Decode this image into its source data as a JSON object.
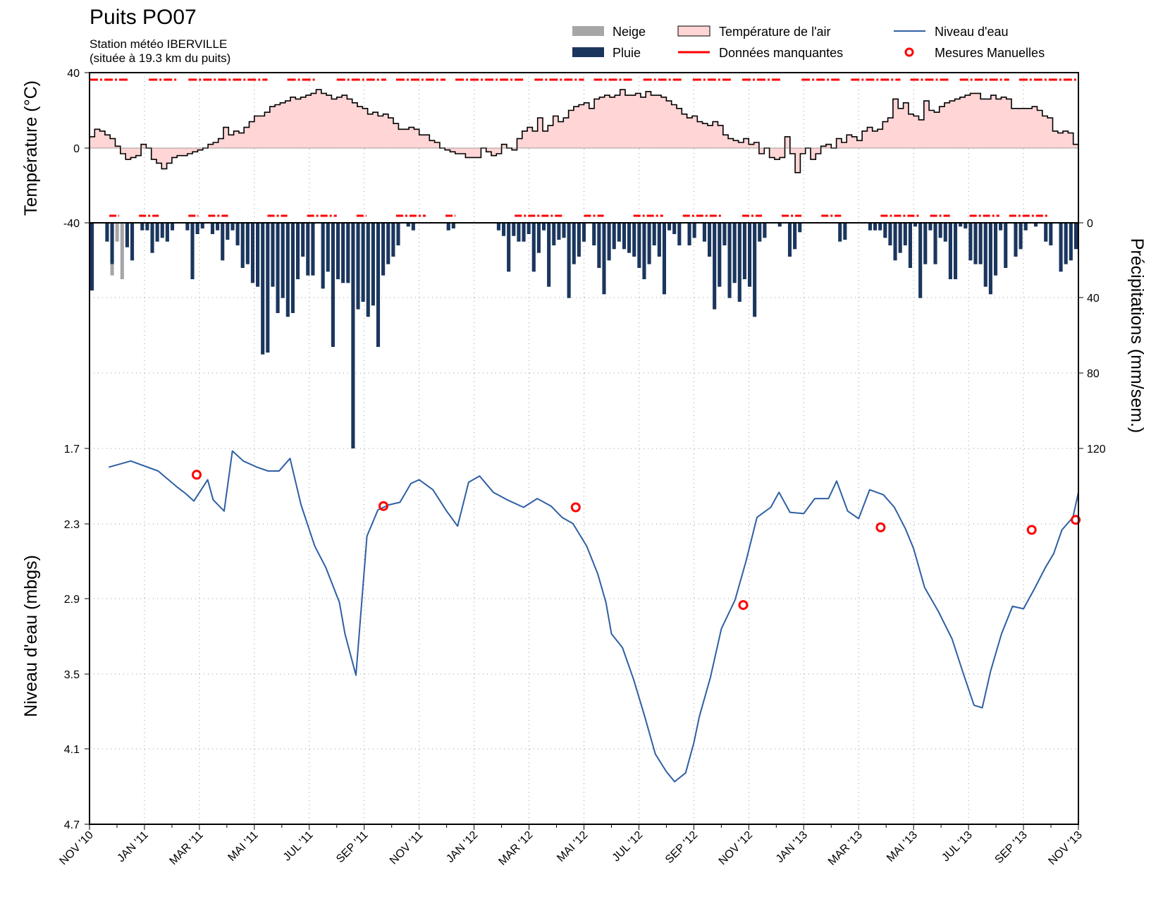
{
  "chart_data": {
    "type": "line",
    "title": "Puits PO07",
    "subtitle_1": "Station météo IBERVILLE",
    "subtitle_2": "(située à 19.3 km du puits)",
    "legend": {
      "snow": "Neige",
      "rain": "Pluie",
      "air_temp": "Température de l'air",
      "missing": "Données manquantes",
      "water_level": "Niveau d'eau",
      "manual": "Mesures Manuelles"
    },
    "colors": {
      "snow": "#a6a6a6",
      "rain": "#1b365d",
      "air_temp_fill": "#ffd5d5",
      "missing": "#ff0000",
      "water_level": "#2e5fa3",
      "manual": "#ff0000"
    },
    "x_ticks": [
      "NOV '10",
      "JAN '11",
      "MAR '11",
      "MAI '11",
      "JUL '11",
      "SEP '11",
      "NOV '11",
      "JAN '12",
      "MAR '12",
      "MAI '12",
      "JUL '12",
      "SEP '12",
      "NOV '12",
      "JAN '13",
      "MAR '13",
      "MAI '13",
      "JUL '13",
      "SEP '13",
      "NOV '13"
    ],
    "temperature": {
      "ylabel": "Température (°C)",
      "ylim": [
        -40,
        40
      ],
      "yticks": [
        "40",
        "0",
        "-40"
      ],
      "weekly_values": [
        6,
        10,
        9,
        7,
        5,
        1,
        -3,
        -6,
        -5,
        -4,
        2,
        0,
        -6,
        -8,
        -11,
        -8,
        -5,
        -4,
        -4,
        -3,
        -2,
        -1,
        0,
        2,
        3,
        5,
        11,
        7,
        9,
        8,
        11,
        14,
        17,
        17,
        19,
        22,
        23,
        24,
        25,
        27,
        26,
        27,
        28,
        29,
        31,
        29,
        28,
        26,
        27,
        28,
        26,
        24,
        22,
        21,
        18,
        19,
        17,
        18,
        16,
        13,
        10,
        10,
        11,
        10,
        7,
        7,
        4,
        3,
        0,
        -1,
        -2,
        -3,
        -3,
        -5,
        -5,
        -5,
        0,
        -2,
        -4,
        -3,
        2,
        0,
        -1,
        5,
        9,
        11,
        9,
        16,
        9,
        12,
        17,
        14,
        16,
        20,
        22,
        23,
        24,
        21,
        26,
        27,
        28,
        27,
        28,
        31,
        28,
        28,
        29,
        27,
        30,
        28,
        28,
        27,
        25,
        23,
        21,
        18,
        16,
        17,
        14,
        13,
        12,
        14,
        12,
        7,
        5,
        4,
        3,
        5,
        2,
        3,
        -3,
        0,
        -5,
        -6,
        -5,
        6,
        -3,
        -13,
        -3,
        0,
        -6,
        -3,
        1,
        2,
        0,
        5,
        3,
        7,
        6,
        4,
        9,
        11,
        9,
        10,
        14,
        16,
        26,
        21,
        24,
        18,
        17,
        15,
        25,
        20,
        19,
        22,
        24,
        25,
        26,
        27,
        28,
        29,
        29,
        26,
        26,
        28,
        26,
        27,
        26,
        21,
        21,
        21,
        21,
        22,
        20,
        17,
        16,
        9,
        8,
        9,
        8,
        2
      ],
      "missing_top_segments": [
        [
          0.0,
          0.04
        ],
        [
          0.06,
          0.09
        ],
        [
          0.1,
          0.18
        ],
        [
          0.2,
          0.23
        ],
        [
          0.25,
          0.3
        ],
        [
          0.31,
          0.36
        ],
        [
          0.37,
          0.44
        ],
        [
          0.45,
          0.5
        ],
        [
          0.51,
          0.55
        ],
        [
          0.56,
          0.6
        ],
        [
          0.61,
          0.65
        ],
        [
          0.66,
          0.7
        ],
        [
          0.72,
          0.76
        ],
        [
          0.77,
          0.82
        ],
        [
          0.83,
          0.87
        ],
        [
          0.88,
          0.93
        ],
        [
          0.94,
          1.0
        ]
      ],
      "missing_bottom_segments": [
        [
          0.02,
          0.03
        ],
        [
          0.05,
          0.07
        ],
        [
          0.1,
          0.11
        ],
        [
          0.12,
          0.14
        ],
        [
          0.18,
          0.2
        ],
        [
          0.22,
          0.25
        ],
        [
          0.27,
          0.28
        ],
        [
          0.31,
          0.34
        ],
        [
          0.36,
          0.37
        ],
        [
          0.43,
          0.48
        ],
        [
          0.5,
          0.52
        ],
        [
          0.55,
          0.58
        ],
        [
          0.6,
          0.64
        ],
        [
          0.66,
          0.68
        ],
        [
          0.7,
          0.72
        ],
        [
          0.74,
          0.76
        ],
        [
          0.8,
          0.84
        ],
        [
          0.85,
          0.87
        ],
        [
          0.89,
          0.92
        ],
        [
          0.93,
          0.97
        ]
      ]
    },
    "precipitation": {
      "ylabel": "Précipitations (mm/sem.)",
      "ylim": [
        0,
        120
      ],
      "yticks": [
        "0",
        "40",
        "80",
        "120"
      ],
      "rain": [
        36,
        0,
        0,
        10,
        22,
        0,
        0,
        13,
        20,
        0,
        4,
        4,
        16,
        10,
        8,
        10,
        4,
        0,
        0,
        4,
        30,
        6,
        3,
        0,
        6,
        4,
        20,
        9,
        4,
        12,
        24,
        22,
        32,
        34,
        70,
        69,
        34,
        48,
        40,
        50,
        48,
        30,
        18,
        28,
        28,
        0,
        35,
        26,
        66,
        30,
        32,
        32,
        120,
        46,
        42,
        50,
        44,
        66,
        28,
        22,
        18,
        12,
        0,
        2,
        4,
        0,
        0,
        0,
        0,
        0,
        0,
        4,
        3,
        0,
        0,
        0,
        0,
        0,
        0,
        0,
        0,
        4,
        7,
        26,
        7,
        10,
        10,
        6,
        26,
        16,
        4,
        34,
        12,
        9,
        8,
        40,
        22,
        18,
        10,
        0,
        12,
        24,
        38,
        20,
        14,
        10,
        14,
        16,
        18,
        24,
        30,
        22,
        12,
        18,
        38,
        4,
        6,
        12,
        0,
        12,
        8,
        0,
        10,
        18,
        46,
        34,
        12,
        40,
        32,
        42,
        30,
        34,
        50,
        10,
        8,
        0,
        0,
        2,
        0,
        18,
        14,
        5,
        0,
        0,
        0,
        0,
        0,
        0,
        0,
        10,
        9,
        0,
        0,
        0,
        0,
        4,
        4,
        4,
        8,
        12,
        20,
        16,
        12,
        24,
        2,
        40,
        22,
        4,
        22,
        8,
        10,
        30,
        30,
        2,
        3,
        20,
        22,
        22,
        34,
        38,
        28,
        4,
        24,
        0,
        18,
        14,
        4,
        0,
        2,
        0,
        10,
        12,
        0,
        26,
        22,
        20,
        14
      ],
      "snow": [
        0,
        0,
        0,
        0,
        6,
        10,
        30,
        0,
        0,
        0,
        0,
        0,
        0,
        0,
        0,
        0,
        0,
        0,
        0,
        0,
        0,
        0,
        0,
        0,
        0,
        0,
        0,
        0,
        0,
        0,
        0,
        0,
        0,
        0,
        0,
        0,
        0,
        0,
        0,
        0,
        0,
        0,
        0,
        0,
        0,
        0,
        0,
        0,
        0,
        0,
        0,
        0,
        0,
        0,
        0,
        0,
        0,
        0,
        0,
        0,
        0,
        0,
        0,
        0,
        0,
        0,
        0,
        0,
        0,
        0,
        0,
        0,
        0,
        0,
        0,
        0,
        0,
        0,
        0,
        0,
        0,
        0,
        0,
        0,
        0,
        0,
        0,
        0,
        0,
        0,
        0,
        0,
        0,
        0,
        0,
        0,
        0,
        0,
        0,
        0,
        0,
        0,
        0,
        0,
        0,
        0,
        0,
        0,
        0,
        0,
        0,
        0,
        0,
        0,
        0,
        0,
        0,
        0,
        0,
        0,
        0,
        0,
        0,
        0,
        0,
        0,
        0,
        0,
        0,
        0,
        0,
        0,
        0,
        0,
        0,
        0,
        0,
        0,
        0,
        0,
        0,
        0,
        0,
        0,
        0,
        0,
        0,
        0,
        0,
        0,
        0,
        0,
        0,
        0,
        0,
        0,
        0,
        0,
        0,
        0,
        0,
        0,
        0,
        0,
        0,
        0,
        0,
        0,
        0,
        0,
        0,
        0,
        0,
        0,
        0,
        0,
        0,
        0,
        0,
        0,
        0,
        0,
        0,
        0,
        0,
        0,
        0,
        0,
        0,
        0,
        0,
        0,
        0,
        0,
        0,
        0
      ]
    },
    "water_level": {
      "ylabel": "Niveau d'eau (mbgs)",
      "ylim": [
        4.7,
        1.7
      ],
      "yticks": [
        "1.7",
        "2.3",
        "2.9",
        "3.5",
        "4.1",
        "4.7"
      ],
      "x_months": [
        0.7,
        1.5,
        2.5,
        3.2,
        3.5,
        3.8,
        4.3,
        4.5,
        4.9,
        5.2,
        5.6,
        6.1,
        6.5,
        6.9,
        7.3,
        7.7,
        8.2,
        8.6,
        9.1,
        9.3,
        9.7,
        10.1,
        10.5,
        10.9,
        11.3,
        11.7,
        12.0,
        12.5,
        13.0,
        13.4,
        13.8,
        14.2,
        14.7,
        15.2,
        15.8,
        16.3,
        16.8,
        17.2,
        17.6,
        18.1,
        18.5,
        18.8,
        19.0,
        19.4,
        19.8,
        20.2,
        20.6,
        21.0,
        21.3,
        21.7,
        22.0,
        22.2,
        22.6,
        23.0,
        23.5,
        23.9,
        24.3,
        24.8,
        25.1,
        25.5,
        26.0,
        26.4,
        26.9,
        27.2,
        27.6,
        28.0,
        28.4,
        28.9,
        29.3,
        29.7,
        30.0,
        30.4,
        30.9,
        31.4,
        31.8,
        32.2,
        32.5,
        32.8,
        33.2,
        33.6,
        34.0,
        34.4,
        34.8,
        35.1,
        35.4,
        35.8,
        36.0
      ],
      "values": [
        1.85,
        1.8,
        1.88,
        2.01,
        2.06,
        2.12,
        1.95,
        2.11,
        2.2,
        1.72,
        1.8,
        1.85,
        1.88,
        1.88,
        1.78,
        2.15,
        2.48,
        2.65,
        2.93,
        3.18,
        3.51,
        2.4,
        2.19,
        2.15,
        2.13,
        1.98,
        1.95,
        2.03,
        2.2,
        2.32,
        1.97,
        1.92,
        2.05,
        2.11,
        2.17,
        2.1,
        2.16,
        2.25,
        2.3,
        2.48,
        2.7,
        2.93,
        3.18,
        3.29,
        3.54,
        3.83,
        4.14,
        4.28,
        4.36,
        4.29,
        4.05,
        3.84,
        3.53,
        3.14,
        2.91,
        2.6,
        2.25,
        2.17,
        2.05,
        2.21,
        2.22,
        2.1,
        2.1,
        1.96,
        2.2,
        2.26,
        2.03,
        2.07,
        2.17,
        2.34,
        2.5,
        2.81,
        3.0,
        3.22,
        3.49,
        3.75,
        3.77,
        3.48,
        3.18,
        2.96,
        2.98,
        2.82,
        2.65,
        2.54,
        2.35,
        2.25,
        2.05
      ],
      "manual_x_months": [
        3.9,
        10.7,
        17.7,
        23.8,
        28.8,
        34.3,
        35.9
      ],
      "manual_values": [
        1.91,
        2.16,
        2.17,
        2.95,
        2.33,
        2.35,
        2.27
      ]
    }
  }
}
